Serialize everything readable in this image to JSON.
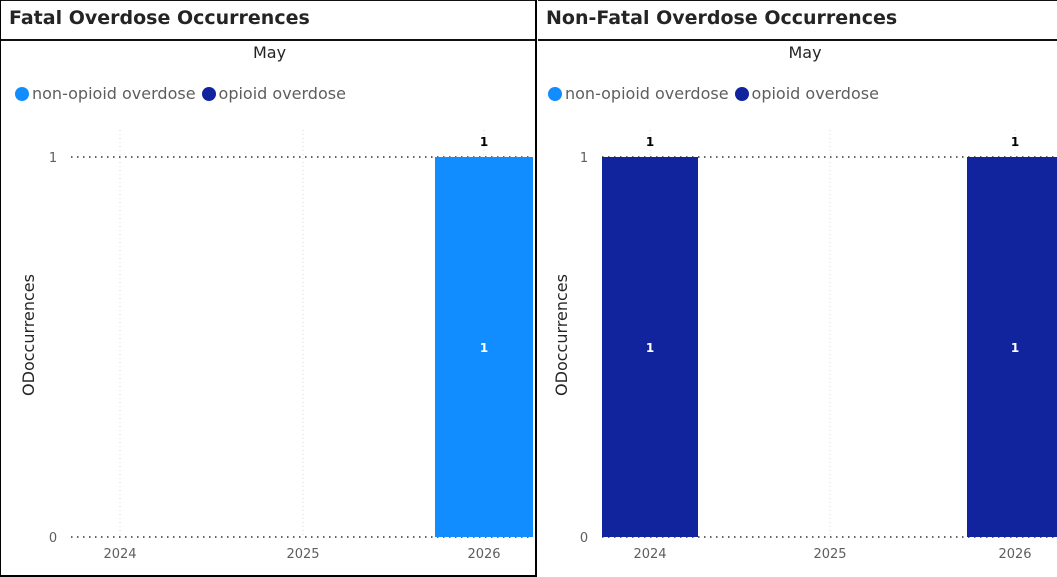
{
  "colors": {
    "non_opioid": "#118DFF",
    "opioid": "#12239E"
  },
  "chart_data": [
    {
      "type": "bar",
      "stacked": true,
      "title": "Fatal Overdose Occurrences",
      "subtitle": "May",
      "xlabel": "",
      "ylabel": "ODoccurrences",
      "categories": [
        "2024",
        "2025",
        "2026"
      ],
      "yticks": [
        "0",
        "1"
      ],
      "ylim": [
        0,
        1
      ],
      "grid": true,
      "legend_position": "top-left",
      "series": [
        {
          "name": "non-opioid overdose",
          "color": "#118DFF",
          "values": [
            0,
            0,
            1
          ]
        },
        {
          "name": "opioid overdose",
          "color": "#12239E",
          "values": [
            0,
            0,
            0
          ]
        }
      ],
      "totals": [
        0,
        0,
        1
      ]
    },
    {
      "type": "bar",
      "stacked": true,
      "title": "Non-Fatal Overdose Occurrences",
      "subtitle": "May",
      "xlabel": "",
      "ylabel": "ODoccurrences",
      "categories": [
        "2024",
        "2025",
        "2026"
      ],
      "yticks": [
        "0",
        "1"
      ],
      "ylim": [
        0,
        1
      ],
      "grid": true,
      "legend_position": "top-left",
      "series": [
        {
          "name": "non-opioid overdose",
          "color": "#118DFF",
          "values": [
            0,
            0,
            0
          ]
        },
        {
          "name": "opioid overdose",
          "color": "#12239E",
          "values": [
            1,
            0,
            1
          ]
        }
      ],
      "totals": [
        1,
        0,
        1
      ]
    }
  ]
}
